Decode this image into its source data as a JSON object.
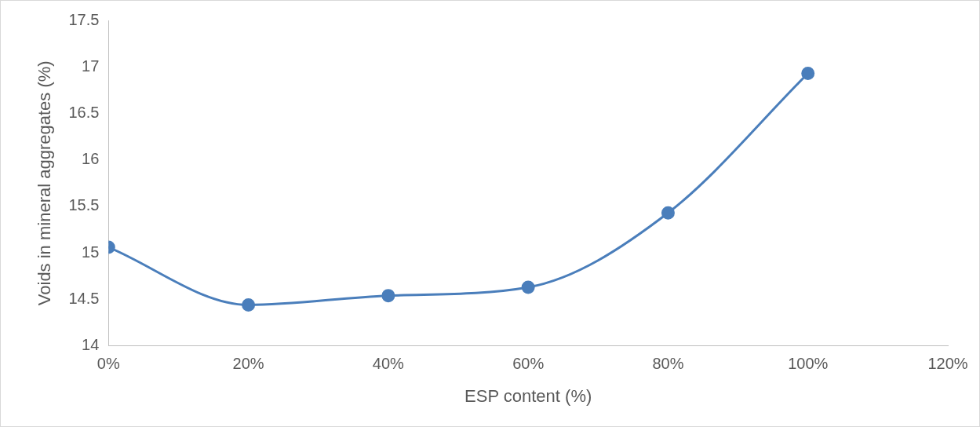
{
  "chart_data": {
    "type": "line",
    "xlabel": "ESP content (%)",
    "ylabel": "Voids in mineral aggregates (%)",
    "x": [
      0,
      20,
      40,
      60,
      80,
      100
    ],
    "series": [
      {
        "color": "#4a7ebb",
        "values": [
          15.06,
          14.44,
          14.54,
          14.63,
          15.43,
          16.93
        ]
      }
    ],
    "xlim": [
      0,
      120
    ],
    "xticks": [
      {
        "value": 0,
        "label": "0%"
      },
      {
        "value": 20,
        "label": "20%"
      },
      {
        "value": 40,
        "label": "40%"
      },
      {
        "value": 60,
        "label": "60%"
      },
      {
        "value": 80,
        "label": "80%"
      },
      {
        "value": 100,
        "label": "100%"
      },
      {
        "value": 120,
        "label": "120%"
      }
    ],
    "ylim": [
      14,
      17.5
    ],
    "yticks": [
      14,
      14.5,
      15,
      15.5,
      16,
      16.5,
      17,
      17.5
    ],
    "grid": false,
    "legend": false,
    "marker": "circle",
    "line_style": "solid"
  }
}
